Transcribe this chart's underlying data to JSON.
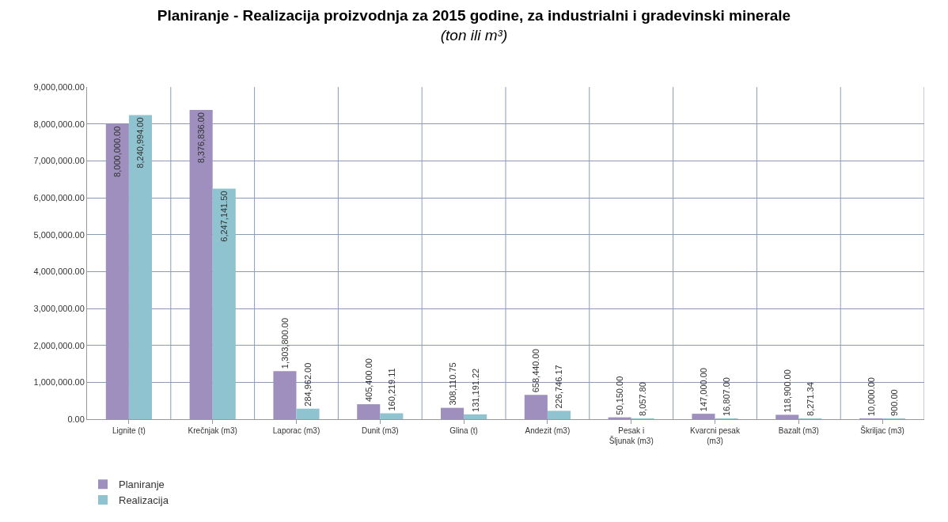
{
  "chart_data": {
    "type": "bar",
    "title": "Planiranje - Realizacija proizvodnja za 2015 godine, za industrialni i gradevinski minerale",
    "subtitle": "(ton ili m³)",
    "categories": [
      "Lignite (t)",
      "Krečnjak (m3)",
      "Laporac (m3)",
      "Dunit (m3)",
      "Glina (t)",
      "Andezit (m3)",
      "Pesak i Šljunak (m3)",
      "Kvarcni pesak (m3)",
      "Bazalt (m3)",
      "Škriljac (m3)"
    ],
    "series": [
      {
        "name": "Planiranje",
        "color": "#9e8fbf",
        "values": [
          8000000.0,
          8376836.0,
          1303800.0,
          405400.0,
          308110.75,
          658440.0,
          50150.0,
          147000.0,
          118900.0,
          10000.0
        ],
        "value_labels": [
          "8,000,000.00",
          "8,376,836.00",
          "1,303,800.00",
          "405,400.00",
          "308,110.75",
          "658,440.00",
          "50,150.00",
          "147,000.00",
          "118,900.00",
          "10,000.00"
        ]
      },
      {
        "name": "Realizacija",
        "color": "#8fc3d0",
        "values": [
          8240994.0,
          6247141.5,
          284962.0,
          160219.11,
          131191.22,
          226746.17,
          8057.8,
          16807.0,
          8271.34,
          900.0
        ],
        "value_labels": [
          "8,240,994.00",
          "6,247,141.50",
          "284,962.00",
          "160,219.11",
          "131,191.22",
          "226,746.17",
          "8,057.80",
          "16,807.00",
          "8,271.34",
          "900.00"
        ]
      }
    ],
    "ylim": [
      0,
      9000000
    ],
    "yticks": [
      {
        "value": 0,
        "label": "0.00"
      },
      {
        "value": 1000000,
        "label": "1,000,000.00"
      },
      {
        "value": 2000000,
        "label": "2,000,000.00"
      },
      {
        "value": 3000000,
        "label": "3,000,000.00"
      },
      {
        "value": 4000000,
        "label": "4,000,000.00"
      },
      {
        "value": 5000000,
        "label": "5,000,000.00"
      },
      {
        "value": 6000000,
        "label": "6,000,000.00"
      },
      {
        "value": 7000000,
        "label": "7,000,000.00"
      },
      {
        "value": 8000000,
        "label": "8,000,000.00"
      },
      {
        "value": 9000000,
        "label": "9,000,000.00"
      }
    ],
    "grid": true,
    "legend": "bottom left"
  }
}
